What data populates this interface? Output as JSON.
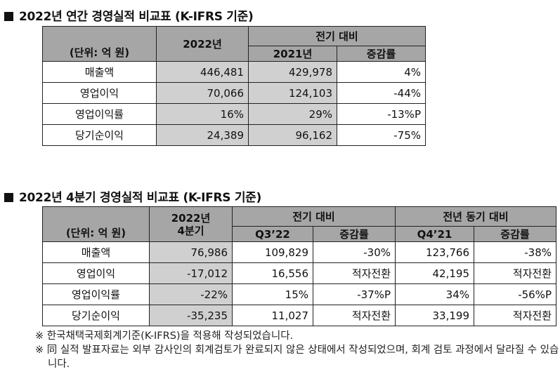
{
  "annual": {
    "title": "2022년 연간 경영실적 비교표 (K-IFRS 기준)",
    "unit_label": "(단위: 억 원)",
    "col_current": "2022년",
    "col_prev_group": "전기 대비",
    "col_prev_year": "2021년",
    "col_change": "증감률",
    "rows": [
      {
        "label": "매출액",
        "current": "446,481",
        "prev": "429,978",
        "change": "4%"
      },
      {
        "label": "영업이익",
        "current": "70,066",
        "prev": "124,103",
        "change": "-44%"
      },
      {
        "label": "영업이익률",
        "current": "16%",
        "prev": "29%",
        "change": "-13%P"
      },
      {
        "label": "당기순이익",
        "current": "24,389",
        "prev": "96,162",
        "change": "-75%"
      }
    ]
  },
  "quarterly": {
    "title": "2022년 4분기 경영실적 비교표 (K-IFRS 기준)",
    "unit_label": "(단위: 억 원)",
    "col_current_line1": "2022년",
    "col_current_line2": "4분기",
    "col_qoq_group": "전기 대비",
    "col_qoq_period": "Q3’22",
    "col_qoq_change": "증감률",
    "col_yoy_group": "전년 동기 대비",
    "col_yoy_period": "Q4’21",
    "col_yoy_change": "증감률",
    "rows": [
      {
        "label": "매출액",
        "current": "76,986",
        "q3": "109,829",
        "qoq": "-30%",
        "q4py": "123,766",
        "yoy": "-38%"
      },
      {
        "label": "영업이익",
        "current": "-17,012",
        "q3": "16,556",
        "qoq": "적자전환",
        "q4py": "42,195",
        "yoy": "적자전환"
      },
      {
        "label": "영업이익률",
        "current": "-22%",
        "q3": "15%",
        "qoq": "-37%P",
        "q4py": "34%",
        "yoy": "-56%P"
      },
      {
        "label": "당기순이익",
        "current": "-35,235",
        "q3": "11,027",
        "qoq": "적자전환",
        "q4py": "33,199",
        "yoy": "적자전환"
      }
    ]
  },
  "notes": [
    "※ 한국채택국제회계기준(K-IFRS)을 적용해 작성되었습니다.",
    "※ 同 실적 발표자료는 외부 감사인의 회계검토가 완료되지 않은 상태에서 작성되었으며, 회계 검토 과정에서 달라질 수 있습니다."
  ]
}
